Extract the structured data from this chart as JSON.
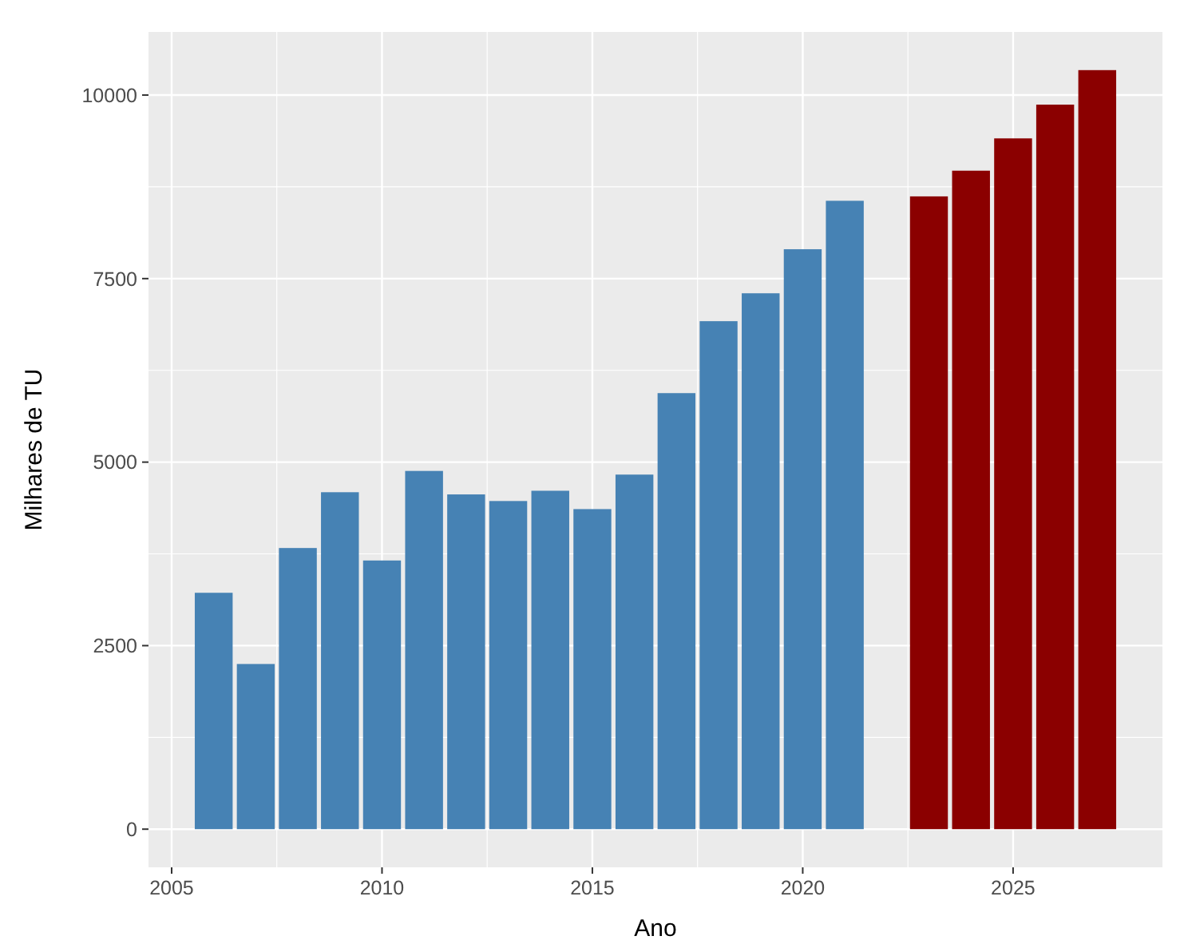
{
  "chart_data": {
    "type": "bar",
    "xlabel": "Ano",
    "ylabel": "Milhares de TU",
    "series": [
      {
        "color": "#4682b4",
        "x": [
          2006,
          2007,
          2008,
          2009,
          2010,
          2011,
          2012,
          2013,
          2014,
          2015,
          2016,
          2017,
          2018,
          2019,
          2020,
          2021
        ],
        "values": [
          3220,
          2250,
          3830,
          4590,
          3660,
          4880,
          4560,
          4470,
          4610,
          4360,
          4830,
          5940,
          6920,
          7300,
          7900,
          8560
        ]
      },
      {
        "color": "#8b0000",
        "x": [
          2023,
          2024,
          2025,
          2026,
          2027
        ],
        "values": [
          8620,
          8970,
          9410,
          9870,
          10340
        ]
      }
    ],
    "xlim": [
      2004.45,
      2028.55
    ],
    "xticks": [
      2005,
      2010,
      2015,
      2020,
      2025
    ],
    "ylim": [
      -520,
      10860
    ],
    "yticks": [
      0,
      2500,
      5000,
      7500,
      10000
    ],
    "grid": true
  }
}
